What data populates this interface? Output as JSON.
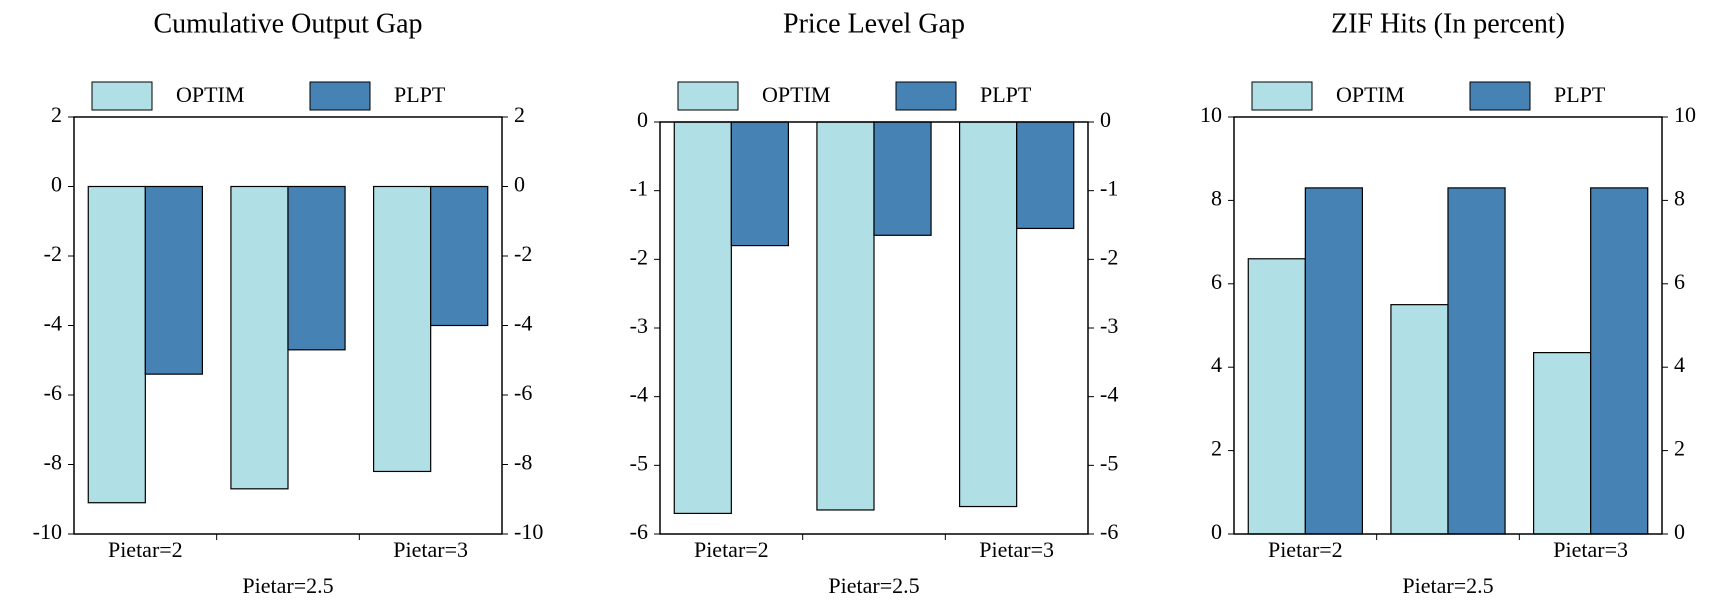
{
  "chart_data": [
    {
      "type": "bar",
      "title": "Cumulative Output Gap",
      "categories": [
        "Pietar=2",
        "Pietar=2.5",
        "Pietar=3"
      ],
      "series": [
        {
          "name": "OPTIM",
          "color": "#b0e0e6",
          "values": [
            -9.1,
            -8.7,
            -8.2
          ]
        },
        {
          "name": "PLPT",
          "color": "#4682b4",
          "values": [
            -5.4,
            -4.7,
            -4.0
          ]
        }
      ],
      "ylim": [
        -10,
        2
      ],
      "yticks": [
        -10,
        -8,
        -6,
        -4,
        -2,
        0,
        2
      ]
    },
    {
      "type": "bar",
      "title": "Price Level Gap",
      "categories": [
        "Pietar=2",
        "Pietar=2.5",
        "Pietar=3"
      ],
      "series": [
        {
          "name": "OPTIM",
          "color": "#b0e0e6",
          "values": [
            -5.7,
            -5.65,
            -5.6
          ]
        },
        {
          "name": "PLPT",
          "color": "#4682b4",
          "values": [
            -1.8,
            -1.65,
            -1.55
          ]
        }
      ],
      "ylim": [
        -6,
        0
      ],
      "yticks": [
        -6,
        -5,
        -4,
        -3,
        -2,
        -1,
        0
      ]
    },
    {
      "type": "bar",
      "title": "ZIF Hits (In percent)",
      "categories": [
        "Pietar=2",
        "Pietar=2.5",
        "Pietar=3"
      ],
      "series": [
        {
          "name": "OPTIM",
          "color": "#b0e0e6",
          "values": [
            6.6,
            5.5,
            4.35
          ]
        },
        {
          "name": "PLPT",
          "color": "#4682b4",
          "values": [
            8.3,
            8.3,
            8.3
          ]
        }
      ],
      "ylim": [
        0,
        10
      ],
      "yticks": [
        0,
        2,
        4,
        6,
        8,
        10
      ]
    }
  ]
}
